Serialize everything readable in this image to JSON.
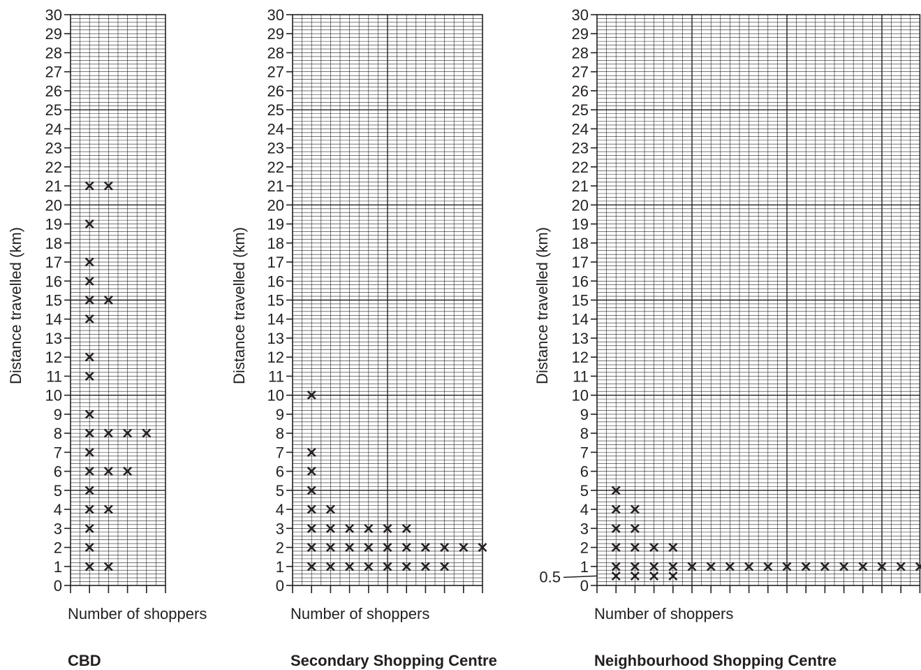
{
  "chart_data": [
    {
      "type": "scatter",
      "title": "CBD",
      "xlabel": "Number of shoppers",
      "ylabel": "Distance travelled (km)",
      "ylim": [
        0,
        30
      ],
      "xlim": [
        0,
        5
      ],
      "yticks": [
        0,
        1,
        2,
        3,
        4,
        5,
        6,
        7,
        8,
        9,
        10,
        11,
        12,
        13,
        14,
        15,
        16,
        17,
        18,
        19,
        20,
        21,
        22,
        23,
        24,
        25,
        26,
        27,
        28,
        29,
        30
      ],
      "extra_ytick_labels": [],
      "grid": true,
      "marker": "×",
      "points": [
        {
          "x": 1,
          "y": 21
        },
        {
          "x": 2,
          "y": 21
        },
        {
          "x": 1,
          "y": 19
        },
        {
          "x": 1,
          "y": 17
        },
        {
          "x": 1,
          "y": 16
        },
        {
          "x": 1,
          "y": 15
        },
        {
          "x": 2,
          "y": 15
        },
        {
          "x": 1,
          "y": 14
        },
        {
          "x": 1,
          "y": 12
        },
        {
          "x": 1,
          "y": 11
        },
        {
          "x": 1,
          "y": 9
        },
        {
          "x": 1,
          "y": 8
        },
        {
          "x": 2,
          "y": 8
        },
        {
          "x": 3,
          "y": 8
        },
        {
          "x": 4,
          "y": 8
        },
        {
          "x": 1,
          "y": 7
        },
        {
          "x": 1,
          "y": 6
        },
        {
          "x": 2,
          "y": 6
        },
        {
          "x": 3,
          "y": 6
        },
        {
          "x": 1,
          "y": 5
        },
        {
          "x": 1,
          "y": 4
        },
        {
          "x": 2,
          "y": 4
        },
        {
          "x": 1,
          "y": 3
        },
        {
          "x": 1,
          "y": 2
        },
        {
          "x": 1,
          "y": 1
        },
        {
          "x": 2,
          "y": 1
        }
      ]
    },
    {
      "type": "scatter",
      "title": "Secondary Shopping Centre",
      "xlabel": "Number of shoppers",
      "ylabel": "Distance travelled (km)",
      "ylim": [
        0,
        30
      ],
      "xlim": [
        0,
        10
      ],
      "yticks": [
        0,
        1,
        2,
        3,
        4,
        5,
        6,
        7,
        8,
        9,
        10,
        11,
        12,
        13,
        14,
        15,
        16,
        17,
        18,
        19,
        20,
        21,
        22,
        23,
        24,
        25,
        26,
        27,
        28,
        29,
        30
      ],
      "extra_ytick_labels": [],
      "grid": true,
      "marker": "×",
      "points": [
        {
          "x": 1,
          "y": 10
        },
        {
          "x": 1,
          "y": 7
        },
        {
          "x": 1,
          "y": 6
        },
        {
          "x": 1,
          "y": 5
        },
        {
          "x": 1,
          "y": 4
        },
        {
          "x": 2,
          "y": 4
        },
        {
          "x": 1,
          "y": 3
        },
        {
          "x": 2,
          "y": 3
        },
        {
          "x": 3,
          "y": 3
        },
        {
          "x": 4,
          "y": 3
        },
        {
          "x": 5,
          "y": 3
        },
        {
          "x": 6,
          "y": 3
        },
        {
          "x": 1,
          "y": 2
        },
        {
          "x": 2,
          "y": 2
        },
        {
          "x": 3,
          "y": 2
        },
        {
          "x": 4,
          "y": 2
        },
        {
          "x": 5,
          "y": 2
        },
        {
          "x": 6,
          "y": 2
        },
        {
          "x": 7,
          "y": 2
        },
        {
          "x": 8,
          "y": 2
        },
        {
          "x": 9,
          "y": 2
        },
        {
          "x": 10,
          "y": 2
        },
        {
          "x": 1,
          "y": 1
        },
        {
          "x": 2,
          "y": 1
        },
        {
          "x": 3,
          "y": 1
        },
        {
          "x": 4,
          "y": 1
        },
        {
          "x": 5,
          "y": 1
        },
        {
          "x": 6,
          "y": 1
        },
        {
          "x": 7,
          "y": 1
        },
        {
          "x": 8,
          "y": 1
        }
      ]
    },
    {
      "type": "scatter",
      "title": "Neighbourhood Shopping Centre",
      "xlabel": "Number of shoppers",
      "ylabel": "Distance travelled (km)",
      "ylim": [
        0,
        30
      ],
      "xlim": [
        0,
        17
      ],
      "yticks": [
        0,
        1,
        2,
        3,
        4,
        5,
        6,
        7,
        8,
        9,
        10,
        11,
        12,
        13,
        14,
        15,
        16,
        17,
        18,
        19,
        20,
        21,
        22,
        23,
        24,
        25,
        26,
        27,
        28,
        29,
        30
      ],
      "extra_ytick_labels": [
        0.5
      ],
      "grid": true,
      "marker": "×",
      "points": [
        {
          "x": 1,
          "y": 5
        },
        {
          "x": 1,
          "y": 4
        },
        {
          "x": 2,
          "y": 4
        },
        {
          "x": 1,
          "y": 3
        },
        {
          "x": 2,
          "y": 3
        },
        {
          "x": 1,
          "y": 2
        },
        {
          "x": 2,
          "y": 2
        },
        {
          "x": 3,
          "y": 2
        },
        {
          "x": 4,
          "y": 2
        },
        {
          "x": 1,
          "y": 1
        },
        {
          "x": 2,
          "y": 1
        },
        {
          "x": 3,
          "y": 1
        },
        {
          "x": 4,
          "y": 1
        },
        {
          "x": 5,
          "y": 1
        },
        {
          "x": 6,
          "y": 1
        },
        {
          "x": 7,
          "y": 1
        },
        {
          "x": 8,
          "y": 1
        },
        {
          "x": 9,
          "y": 1
        },
        {
          "x": 10,
          "y": 1
        },
        {
          "x": 11,
          "y": 1
        },
        {
          "x": 12,
          "y": 1
        },
        {
          "x": 13,
          "y": 1
        },
        {
          "x": 14,
          "y": 1
        },
        {
          "x": 15,
          "y": 1
        },
        {
          "x": 16,
          "y": 1
        },
        {
          "x": 17,
          "y": 1
        },
        {
          "x": 1,
          "y": 0.5
        },
        {
          "x": 2,
          "y": 0.5
        },
        {
          "x": 3,
          "y": 0.5
        },
        {
          "x": 4,
          "y": 0.5
        }
      ]
    }
  ]
}
